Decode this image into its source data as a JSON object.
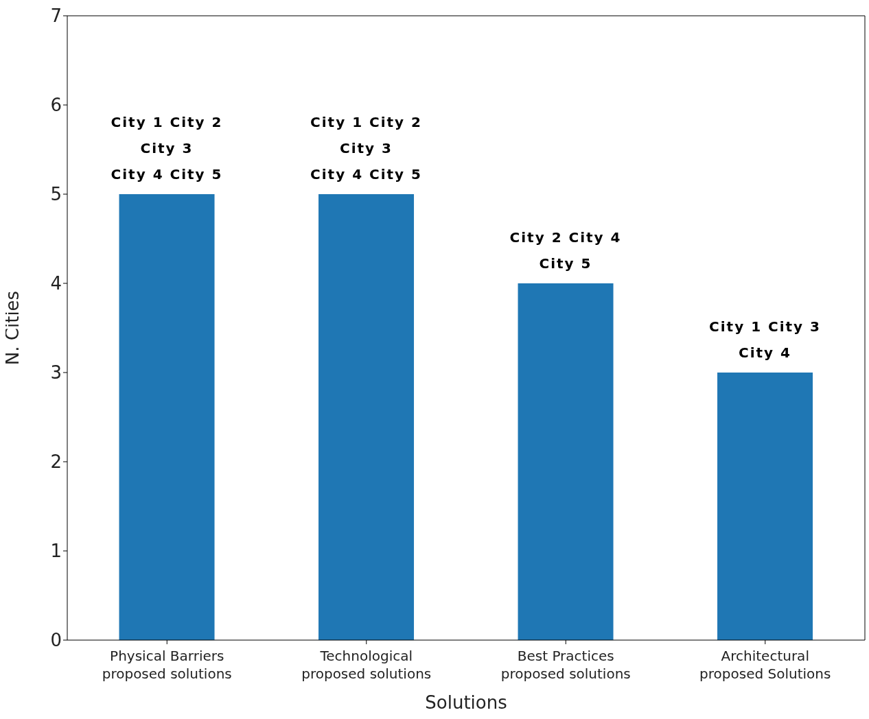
{
  "chart_data": {
    "type": "bar",
    "xlabel": "Solutions",
    "ylabel": "N. Cities",
    "categories": [
      "Physical Barriers\nproposed solutions",
      "Technological\nproposed solutions",
      "Best Practices\nproposed solutions",
      "Architectural\nproposed Solutions"
    ],
    "values": [
      5,
      5,
      4,
      3
    ],
    "color": "#1f77b4",
    "ylim": [
      0,
      7
    ],
    "yticks": [
      0,
      1,
      2,
      3,
      4,
      5,
      6,
      7
    ],
    "grid": false,
    "legend": false,
    "annotations": [
      {
        "text": "City 1 City 2\nCity 3\nCity 4 City 5",
        "x": "Physical Barriers\nproposed solutions",
        "y": 5
      },
      {
        "text": "City 1 City 2\nCity 3\nCity 4 City 5",
        "x": "Technological\nproposed solutions",
        "y": 5
      },
      {
        "text": "City 2 City 4\nCity 5",
        "x": "Best Practices\nproposed solutions",
        "y": 4
      },
      {
        "text": "City 1 City 3\nCity 4",
        "x": "Architectural\nproposed Solutions",
        "y": 3
      }
    ]
  }
}
